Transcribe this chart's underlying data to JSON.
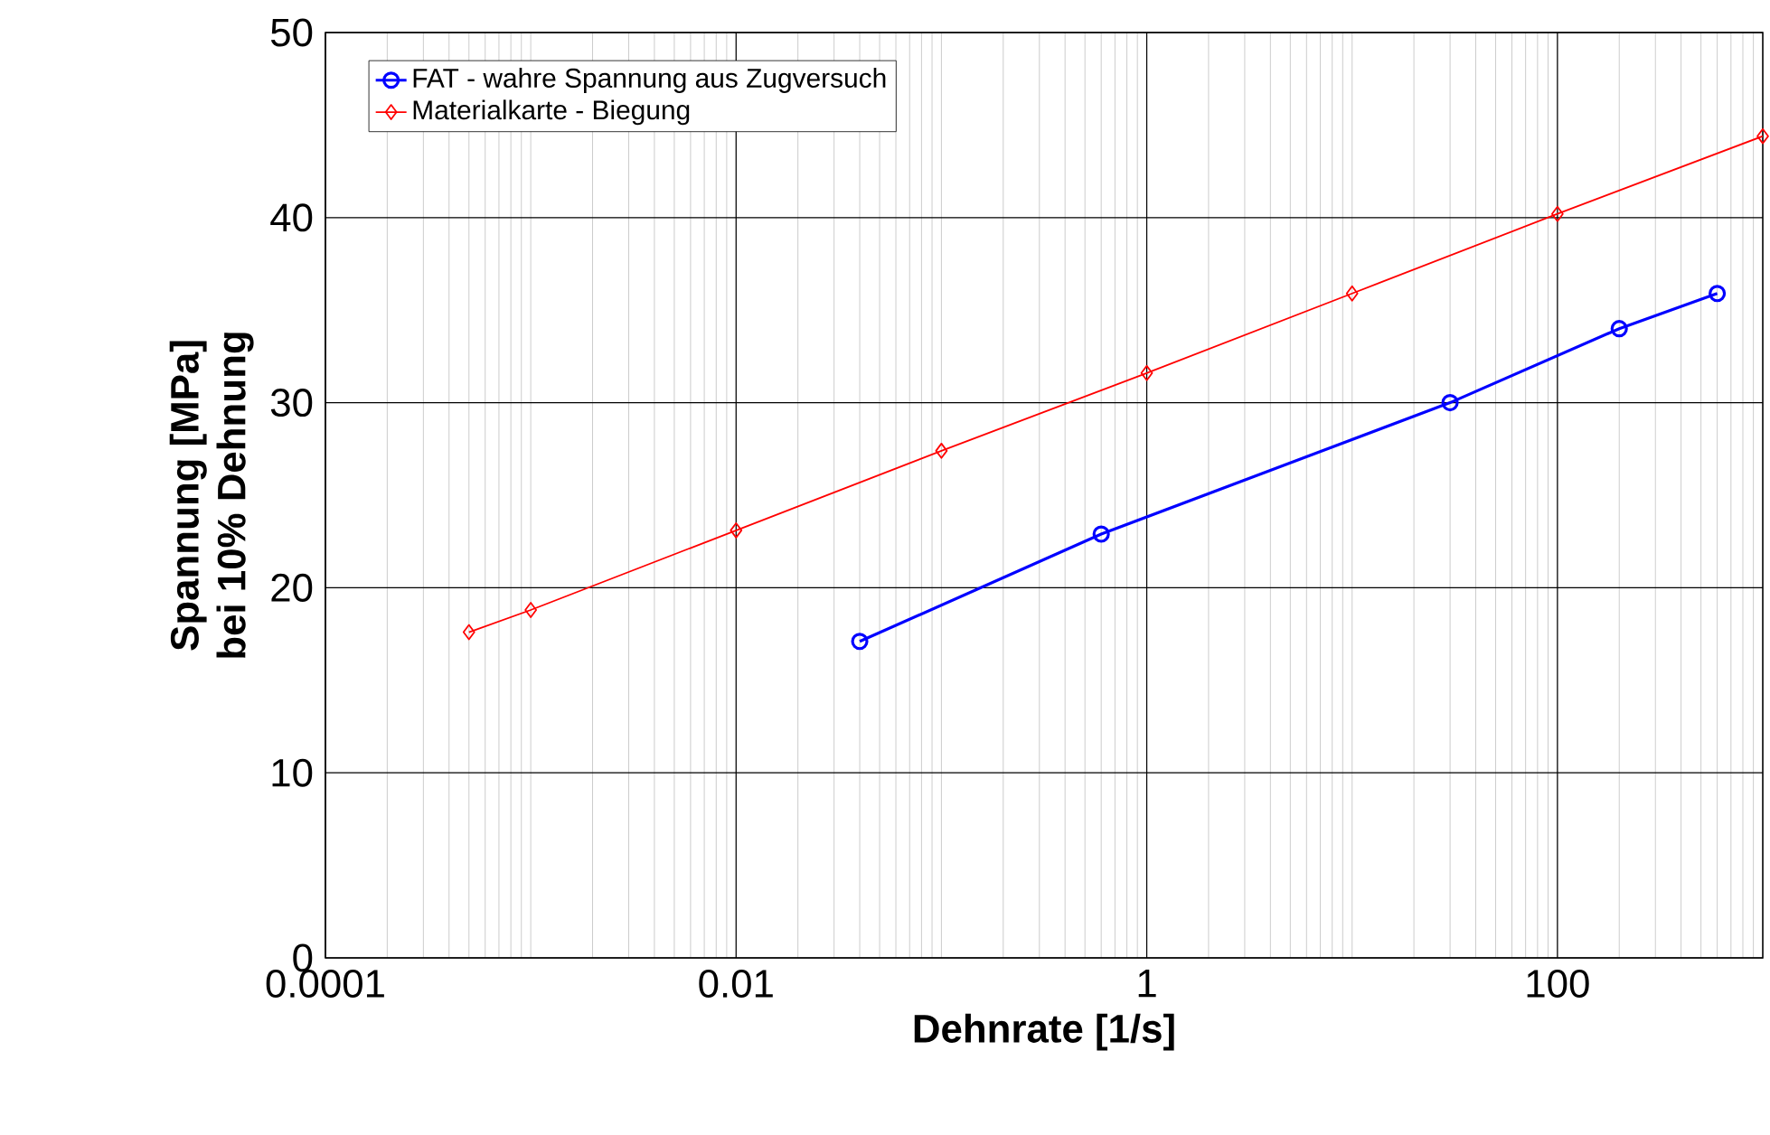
{
  "chart_data": {
    "type": "line",
    "xlabel": "Dehnrate [1/s]",
    "ylabel": "Spannung [MPa]\nbei 10% Dehnung",
    "log": "x",
    "xlim": [
      0.0001,
      1000
    ],
    "xticks": [
      {
        "value": 0.0001,
        "label": "0.0001"
      },
      {
        "value": 0.01,
        "label": "0.01"
      },
      {
        "value": 1,
        "label": "1"
      },
      {
        "value": 100,
        "label": "100"
      }
    ],
    "ylim": [
      0,
      50
    ],
    "yticks": [
      0,
      10,
      20,
      30,
      40,
      50
    ],
    "grid": true,
    "legend": "top left",
    "series": [
      {
        "name": "FAT - wahre Spannung aus Zugversuch",
        "color": "#0000ff",
        "marker": "circle",
        "x": [
          0.04,
          0.6,
          30,
          200,
          600
        ],
        "values": [
          17.1,
          22.9,
          30.0,
          34.0,
          35.9
        ]
      },
      {
        "name": "Materialkarte - Biegung",
        "color": "#ff0000",
        "marker": "diamond",
        "x": [
          0.0005,
          0.001,
          0.01,
          0.1,
          1,
          10,
          100,
          1000
        ],
        "values": [
          17.6,
          18.8,
          23.1,
          27.4,
          31.6,
          35.9,
          40.2,
          44.4
        ]
      }
    ]
  }
}
